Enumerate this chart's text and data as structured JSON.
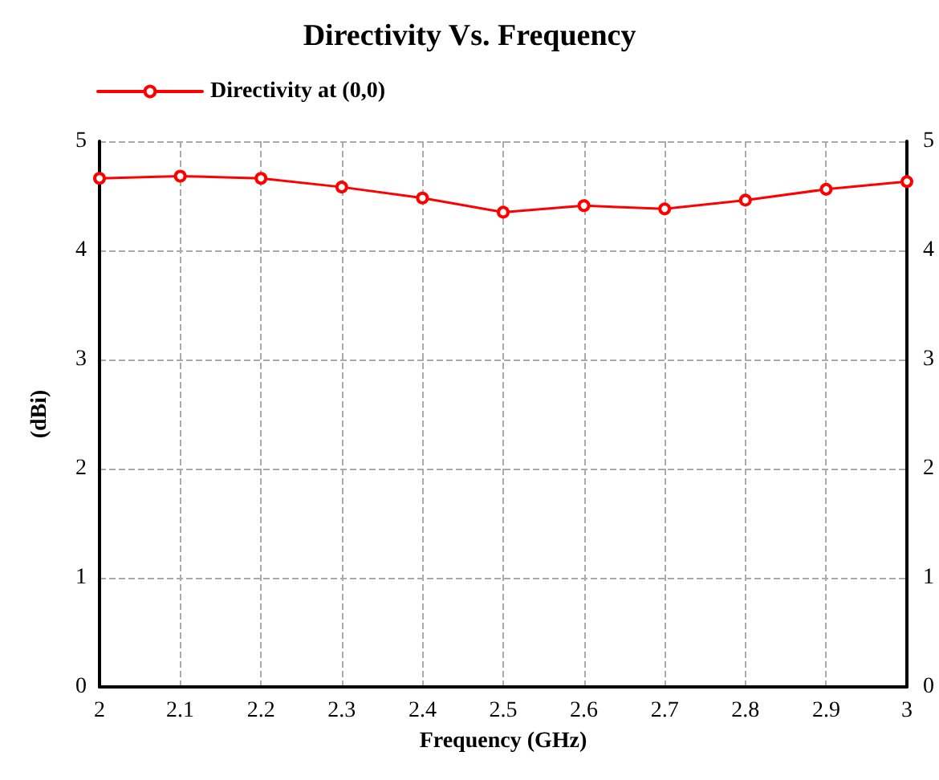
{
  "chart_data": {
    "type": "line",
    "title": "Directivity Vs. Frequency",
    "xlabel": "Frequency (GHz)",
    "ylabel": "(dBi)",
    "x": [
      2,
      2.1,
      2.2,
      2.3,
      2.4,
      2.5,
      2.6,
      2.7,
      2.8,
      2.9,
      3
    ],
    "series": [
      {
        "name": "Directivity at (0,0)",
        "color": "#ff0000",
        "values": [
          4.66,
          4.68,
          4.66,
          4.58,
          4.48,
          4.35,
          4.41,
          4.38,
          4.46,
          4.56,
          4.63
        ]
      }
    ],
    "xlim": [
      2,
      3
    ],
    "xticks": [
      2,
      2.1,
      2.2,
      2.3,
      2.4,
      2.5,
      2.6,
      2.7,
      2.8,
      2.9,
      3
    ],
    "ylim": [
      0,
      5
    ],
    "yticks": [
      0,
      1,
      2,
      3,
      4,
      5
    ],
    "y2lim": [
      0,
      5
    ],
    "y2ticks": [
      0,
      1,
      2,
      3,
      4,
      5
    ],
    "grid": true,
    "legend": "top left",
    "marker": "circle",
    "line_style": "solid"
  }
}
